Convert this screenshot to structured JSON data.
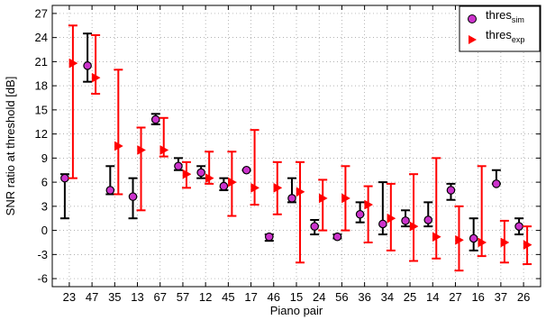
{
  "chart_data": {
    "type": "scatter",
    "xlabel": "Piano pair",
    "ylabel": "SNR ratio at threshold [dB]",
    "ylim": [
      -7,
      28
    ],
    "yticks": [
      -6,
      -3,
      0,
      3,
      6,
      9,
      12,
      15,
      18,
      21,
      24,
      27
    ],
    "grid": true,
    "legend_position": "top-right",
    "categories": [
      "23",
      "47",
      "35",
      "13",
      "67",
      "57",
      "12",
      "45",
      "17",
      "46",
      "15",
      "24",
      "56",
      "36",
      "34",
      "25",
      "14",
      "27",
      "16",
      "37",
      "26"
    ],
    "series": [
      {
        "name": "thres",
        "name_subscript": "sim",
        "marker": "circle",
        "color": "#cc33cc",
        "errorbar_color": "#000000",
        "values": [
          6.5,
          20.5,
          5.0,
          4.2,
          13.8,
          8.0,
          7.2,
          5.5,
          7.5,
          -0.8,
          4.0,
          0.5,
          -0.8,
          2.0,
          0.8,
          1.2,
          1.3,
          5.0,
          -1.0,
          5.8,
          0.5
        ],
        "lower": [
          1.5,
          18.5,
          4.5,
          1.5,
          13.2,
          7.5,
          6.5,
          5.0,
          7.5,
          -1.3,
          3.5,
          -0.5,
          -1.0,
          1.0,
          -0.5,
          0.5,
          0.5,
          3.8,
          -2.5,
          5.8,
          -0.5
        ],
        "upper": [
          7.0,
          24.5,
          8.0,
          6.5,
          14.5,
          9.0,
          8.0,
          6.5,
          7.5,
          -0.5,
          6.5,
          1.3,
          -0.5,
          3.5,
          6.0,
          2.5,
          3.5,
          5.8,
          1.5,
          7.5,
          1.5
        ]
      },
      {
        "name": "thres",
        "name_subscript": "exp",
        "marker": "triangle-right",
        "color": "#ff0000",
        "errorbar_color": "#ff0000",
        "values": [
          20.8,
          19.0,
          10.5,
          10.0,
          10.0,
          7.0,
          6.5,
          6.0,
          5.3,
          5.3,
          4.8,
          4.0,
          4.0,
          3.2,
          1.5,
          0.5,
          -0.8,
          -1.2,
          -1.5,
          -1.5,
          -1.8
        ],
        "lower": [
          6.5,
          17.0,
          4.5,
          2.5,
          9.2,
          5.3,
          5.8,
          1.8,
          3.2,
          2.0,
          -4.0,
          0.0,
          0.0,
          -1.5,
          -2.5,
          -3.8,
          -3.5,
          -5.0,
          -3.2,
          -4.0,
          -4.2
        ],
        "upper": [
          25.5,
          24.3,
          20.0,
          12.8,
          14.0,
          8.5,
          9.8,
          9.8,
          12.5,
          8.5,
          8.5,
          6.3,
          8.0,
          5.5,
          5.8,
          7.0,
          9.0,
          3.0,
          8.0,
          1.2,
          0.5
        ]
      }
    ]
  }
}
